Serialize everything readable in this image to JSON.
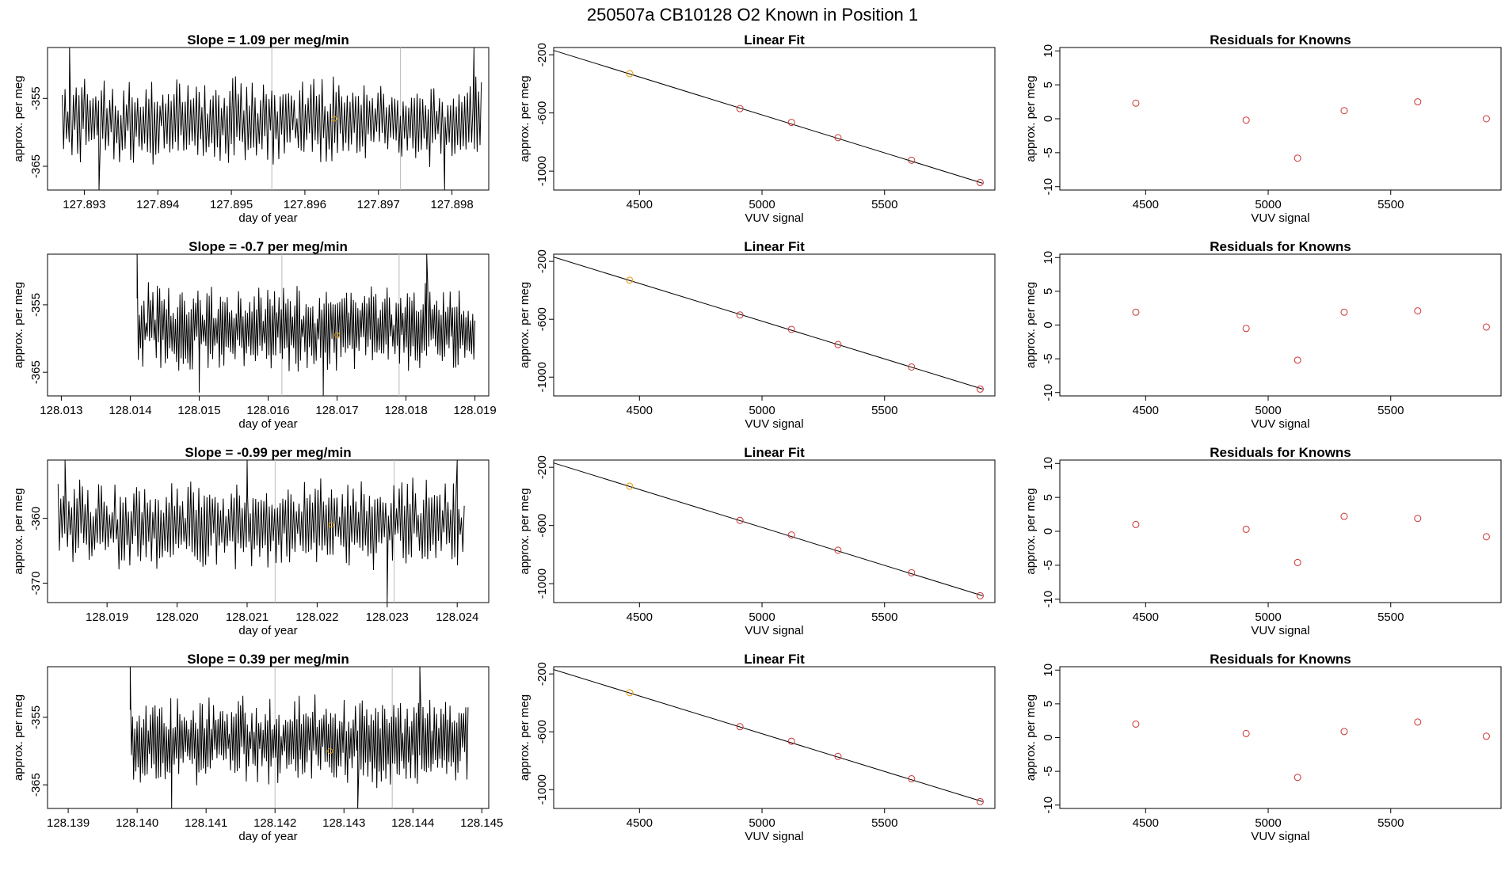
{
  "figure_title": "250507a      CB10128   O2 Known in Position  1",
  "colors": {
    "trace": "#000000",
    "known": "#cc3333",
    "highlight": "#e69900",
    "vline": "#bbbbbb",
    "axis": "#000000"
  },
  "chart_data": [
    {
      "type": "line",
      "row": 0,
      "title": "Slope =  1.09  per meg/min",
      "xlabel": "day of year",
      "ylabel": "approx. per meg",
      "xlim": [
        127.8925,
        127.8985
      ],
      "ylim": [
        -368.5,
        -347.5
      ],
      "xticks": [
        "127.893",
        "127.894",
        "127.895",
        "127.896",
        "127.897",
        "127.898"
      ],
      "yticks": [
        "-355",
        "-365"
      ],
      "series": [
        {
          "x_start": 127.8927,
          "x_end": 127.8984,
          "mean": -358.5,
          "amplitude": 5.5,
          "spikes": [
            [
              127.8928,
              -347
            ],
            [
              127.8932,
              -368.5
            ],
            [
              127.8979,
              -368.5
            ],
            [
              127.8983,
              -347
            ]
          ]
        }
      ],
      "vlines": [
        127.89555,
        127.8973
      ],
      "marker": {
        "x": 127.8964,
        "y": -358
      }
    },
    {
      "type": "line",
      "row": 1,
      "title": "Slope =  -0.7  per meg/min",
      "xlabel": "day of year",
      "ylabel": "approx. per meg",
      "xlim": [
        128.0128,
        128.0192
      ],
      "ylim": [
        -368.5,
        -347.5
      ],
      "xticks": [
        "128.013",
        "128.014",
        "128.015",
        "128.016",
        "128.017",
        "128.018",
        "128.019"
      ],
      "yticks": [
        "-355",
        "-365"
      ],
      "series": [
        {
          "x_start": 128.0141,
          "x_end": 128.019,
          "mean": -358.5,
          "amplitude": 5.5,
          "spikes": [
            [
              128.0141,
              -347
            ],
            [
              128.015,
              -368
            ],
            [
              128.0168,
              -368.5
            ],
            [
              128.0183,
              -347
            ]
          ]
        }
      ],
      "vlines": [
        128.0162,
        128.0179
      ],
      "marker": {
        "x": 128.017,
        "y": -359.5
      }
    },
    {
      "type": "line",
      "row": 2,
      "title": "Slope =  -0.99  per meg/min",
      "xlabel": "day of year",
      "ylabel": "approx. per meg",
      "xlim": [
        128.01815,
        128.02445
      ],
      "ylim": [
        -373,
        -351
      ],
      "xticks": [
        "128.019",
        "128.020",
        "128.021",
        "128.022",
        "128.023",
        "128.024"
      ],
      "yticks": [
        "-360",
        "-370"
      ],
      "series": [
        {
          "x_start": 128.0183,
          "x_end": 128.0241,
          "mean": -361,
          "amplitude": 6,
          "spikes": [
            [
              128.0184,
              -351
            ],
            [
              128.021,
              -351
            ],
            [
              128.023,
              -373
            ],
            [
              128.024,
              -351
            ]
          ]
        }
      ],
      "vlines": [
        128.0214,
        128.0231
      ],
      "marker": {
        "x": 128.0222,
        "y": -361
      }
    },
    {
      "type": "line",
      "row": 3,
      "title": "Slope =  0.39  per meg/min",
      "xlabel": "day of year",
      "ylabel": "approx. per meg",
      "xlim": [
        128.1387,
        128.1451
      ],
      "ylim": [
        -368.5,
        -347.5
      ],
      "xticks": [
        "128.139",
        "128.140",
        "128.141",
        "128.142",
        "128.143",
        "128.144",
        "128.145"
      ],
      "yticks": [
        "-355",
        "-365"
      ],
      "series": [
        {
          "x_start": 128.1399,
          "x_end": 128.1448,
          "mean": -358.5,
          "amplitude": 5.5,
          "spikes": [
            [
              128.1399,
              -347
            ],
            [
              128.1405,
              -368.5
            ],
            [
              128.1432,
              -368.5
            ],
            [
              128.1441,
              -347
            ]
          ]
        }
      ],
      "vlines": [
        128.142,
        128.1437
      ],
      "marker": {
        "x": 128.1428,
        "y": -360
      }
    },
    {
      "type": "scatter",
      "row": 0,
      "title": "Linear Fit",
      "xlabel": "VUV signal",
      "ylabel": "approx. per meg",
      "xlim": [
        4150,
        5950
      ],
      "ylim": [
        -1130,
        -150
      ],
      "xticks": [
        "4500",
        "5000",
        "5500"
      ],
      "yticks": [
        "-200",
        "-600",
        "-1000"
      ],
      "points": [
        [
          4460,
          -330
        ],
        [
          4910,
          -570
        ],
        [
          5120,
          -665
        ],
        [
          5310,
          -770
        ],
        [
          5610,
          -925
        ],
        [
          5890,
          -1078
        ]
      ],
      "highlight_index": 0,
      "fit_line": [
        [
          4150,
          -170
        ],
        [
          5900,
          -1083
        ]
      ]
    },
    {
      "type": "scatter",
      "row": 1,
      "title": "Linear Fit",
      "xlabel": "VUV signal",
      "ylabel": "approx. per meg",
      "xlim": [
        4150,
        5950
      ],
      "ylim": [
        -1130,
        -150
      ],
      "xticks": [
        "4500",
        "5000",
        "5500"
      ],
      "yticks": [
        "-200",
        "-600",
        "-1000"
      ],
      "points": [
        [
          4460,
          -330
        ],
        [
          4910,
          -570
        ],
        [
          5120,
          -670
        ],
        [
          5310,
          -775
        ],
        [
          5610,
          -930
        ],
        [
          5890,
          -1083
        ]
      ],
      "highlight_index": 0,
      "fit_line": [
        [
          4150,
          -170
        ],
        [
          5900,
          -1083
        ]
      ]
    },
    {
      "type": "scatter",
      "row": 2,
      "title": "Linear Fit",
      "xlabel": "VUV signal",
      "ylabel": "approx. per meg",
      "xlim": [
        4150,
        5950
      ],
      "ylim": [
        -1130,
        -150
      ],
      "xticks": [
        "4500",
        "5000",
        "5500"
      ],
      "yticks": [
        "-200",
        "-600",
        "-1000"
      ],
      "points": [
        [
          4460,
          -330
        ],
        [
          4910,
          -565
        ],
        [
          5120,
          -665
        ],
        [
          5310,
          -770
        ],
        [
          5610,
          -925
        ],
        [
          5890,
          -1083
        ]
      ],
      "highlight_index": 0,
      "fit_line": [
        [
          4150,
          -170
        ],
        [
          5900,
          -1083
        ]
      ]
    },
    {
      "type": "scatter",
      "row": 3,
      "title": "Linear Fit",
      "xlabel": "VUV signal",
      "ylabel": "approx. per meg",
      "xlim": [
        4150,
        5950
      ],
      "ylim": [
        -1130,
        -150
      ],
      "xticks": [
        "4500",
        "5000",
        "5500"
      ],
      "yticks": [
        "-200",
        "-600",
        "-1000"
      ],
      "points": [
        [
          4460,
          -330
        ],
        [
          4910,
          -565
        ],
        [
          5120,
          -665
        ],
        [
          5310,
          -770
        ],
        [
          5610,
          -925
        ],
        [
          5890,
          -1083
        ]
      ],
      "highlight_index": 0,
      "fit_line": [
        [
          4150,
          -170
        ],
        [
          5900,
          -1083
        ]
      ]
    },
    {
      "type": "scatter",
      "row": 0,
      "title": "Residuals for Knowns",
      "xlabel": "VUV signal",
      "ylabel": "approx. per meg",
      "xlim": [
        4150,
        5950
      ],
      "ylim": [
        -10.5,
        10.5
      ],
      "xticks": [
        "4500",
        "5000",
        "5500"
      ],
      "yticks": [
        "10",
        "5",
        "0",
        "-5",
        "-10"
      ],
      "points": [
        [
          4460,
          2.3
        ],
        [
          4910,
          -0.2
        ],
        [
          5120,
          -5.8
        ],
        [
          5310,
          1.2
        ],
        [
          5610,
          2.5
        ],
        [
          5890,
          0.0
        ]
      ]
    },
    {
      "type": "scatter",
      "row": 1,
      "title": "Residuals for Knowns",
      "xlabel": "VUV signal",
      "ylabel": "approx. per meg",
      "xlim": [
        4150,
        5950
      ],
      "ylim": [
        -10.5,
        10.5
      ],
      "xticks": [
        "4500",
        "5000",
        "5500"
      ],
      "yticks": [
        "10",
        "5",
        "0",
        "-5",
        "-10"
      ],
      "points": [
        [
          4460,
          1.9
        ],
        [
          4910,
          -0.5
        ],
        [
          5120,
          -5.2
        ],
        [
          5310,
          1.9
        ],
        [
          5610,
          2.1
        ],
        [
          5890,
          -0.3
        ]
      ]
    },
    {
      "type": "scatter",
      "row": 2,
      "title": "Residuals for Knowns",
      "xlabel": "VUV signal",
      "ylabel": "approx. per meg",
      "xlim": [
        4150,
        5950
      ],
      "ylim": [
        -10.5,
        10.5
      ],
      "xticks": [
        "4500",
        "5000",
        "5500"
      ],
      "yticks": [
        "10",
        "5",
        "0",
        "-5",
        "-10"
      ],
      "points": [
        [
          4460,
          1.0
        ],
        [
          4910,
          0.3
        ],
        [
          5120,
          -4.6
        ],
        [
          5310,
          2.2
        ],
        [
          5610,
          1.9
        ],
        [
          5890,
          -0.8
        ]
      ]
    },
    {
      "type": "scatter",
      "row": 3,
      "title": "Residuals for Knowns",
      "xlabel": "VUV signal",
      "ylabel": "approx. per meg",
      "xlim": [
        4150,
        5950
      ],
      "ylim": [
        -10.5,
        10.5
      ],
      "xticks": [
        "4500",
        "5000",
        "5500"
      ],
      "yticks": [
        "10",
        "5",
        "0",
        "-5",
        "-10"
      ],
      "points": [
        [
          4460,
          2.0
        ],
        [
          4910,
          0.6
        ],
        [
          5120,
          -5.9
        ],
        [
          5310,
          0.9
        ],
        [
          5610,
          2.3
        ],
        [
          5890,
          0.2
        ]
      ]
    }
  ]
}
